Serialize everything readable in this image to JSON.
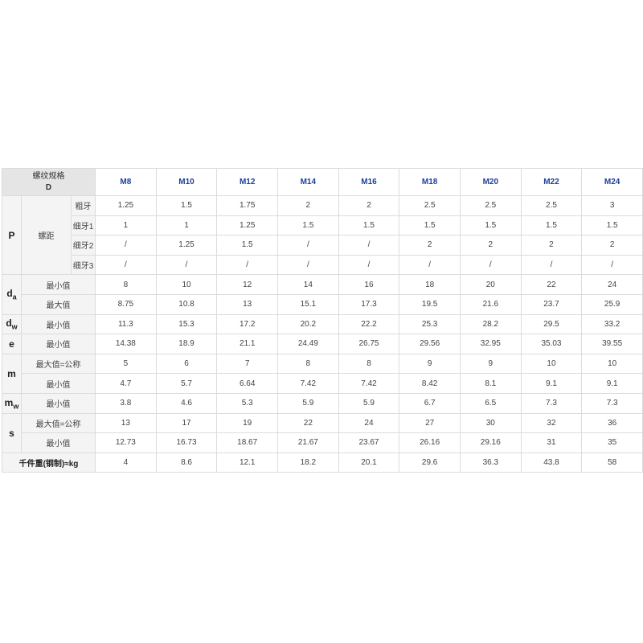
{
  "header": {
    "spec_label": "螺纹规格",
    "spec_symbol": "D",
    "sizes": [
      "M8",
      "M10",
      "M12",
      "M14",
      "M16",
      "M18",
      "M20",
      "M22",
      "M24"
    ]
  },
  "colors": {
    "header_text": "#1d3f9c",
    "header_bg": "#e5e5e5",
    "label_bg": "#f4f4f4",
    "border": "#dcdcdc"
  },
  "groups": [
    {
      "symbol": "P",
      "sub": "",
      "category": "螺距",
      "rows": [
        {
          "label": "粗牙",
          "values": [
            "1.25",
            "1.5",
            "1.75",
            "2",
            "2",
            "2.5",
            "2.5",
            "2.5",
            "3"
          ]
        },
        {
          "label": "细牙1",
          "values": [
            "1",
            "1",
            "1.25",
            "1.5",
            "1.5",
            "1.5",
            "1.5",
            "1.5",
            "1.5"
          ]
        },
        {
          "label": "细牙2",
          "values": [
            "/",
            "1.25",
            "1.5",
            "/",
            "/",
            "2",
            "2",
            "2",
            "2"
          ]
        },
        {
          "label": "细牙3",
          "values": [
            "/",
            "/",
            "/",
            "/",
            "/",
            "/",
            "/",
            "/",
            "/"
          ]
        }
      ]
    },
    {
      "symbol": "d",
      "sub": "a",
      "rows": [
        {
          "label": "最小值",
          "values": [
            "8",
            "10",
            "12",
            "14",
            "16",
            "18",
            "20",
            "22",
            "24"
          ]
        },
        {
          "label": "最大值",
          "values": [
            "8.75",
            "10.8",
            "13",
            "15.1",
            "17.3",
            "19.5",
            "21.6",
            "23.7",
            "25.9"
          ]
        }
      ]
    },
    {
      "symbol": "d",
      "sub": "w",
      "rows": [
        {
          "label": "最小值",
          "values": [
            "11.3",
            "15.3",
            "17.2",
            "20.2",
            "22.2",
            "25.3",
            "28.2",
            "29.5",
            "33.2"
          ]
        }
      ]
    },
    {
      "symbol": "e",
      "sub": "",
      "rows": [
        {
          "label": "最小值",
          "values": [
            "14.38",
            "18.9",
            "21.1",
            "24.49",
            "26.75",
            "29.56",
            "32.95",
            "35.03",
            "39.55"
          ]
        }
      ]
    },
    {
      "symbol": "m",
      "sub": "",
      "rows": [
        {
          "label": "最大值=公称",
          "values": [
            "5",
            "6",
            "7",
            "8",
            "8",
            "9",
            "9",
            "10",
            "10"
          ]
        },
        {
          "label": "最小值",
          "values": [
            "4.7",
            "5.7",
            "6.64",
            "7.42",
            "7.42",
            "8.42",
            "8.1",
            "9.1",
            "9.1"
          ]
        }
      ]
    },
    {
      "symbol": "m",
      "sub": "w",
      "rows": [
        {
          "label": "最小值",
          "values": [
            "3.8",
            "4.6",
            "5.3",
            "5.9",
            "5.9",
            "6.7",
            "6.5",
            "7.3",
            "7.3"
          ]
        }
      ]
    },
    {
      "symbol": "s",
      "sub": "",
      "rows": [
        {
          "label": "最大值=公称",
          "values": [
            "13",
            "17",
            "19",
            "22",
            "24",
            "27",
            "30",
            "32",
            "36"
          ]
        },
        {
          "label": "最小值",
          "values": [
            "12.73",
            "16.73",
            "18.67",
            "21.67",
            "23.67",
            "26.16",
            "29.16",
            "31",
            "35"
          ]
        }
      ]
    }
  ],
  "weight": {
    "label": "千件重(钢制)≈kg",
    "values": [
      "4",
      "8.6",
      "12.1",
      "18.2",
      "20.1",
      "29.6",
      "36.3",
      "43.8",
      "58"
    ]
  }
}
